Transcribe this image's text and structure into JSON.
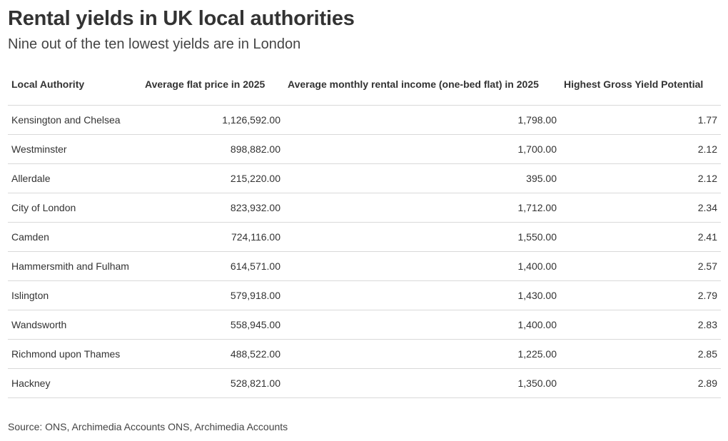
{
  "header": {
    "title": "Rental yields in UK local authorities",
    "subtitle": "Nine out of the ten lowest yields are in London"
  },
  "chart_data": {
    "type": "table",
    "title": "Rental yields in UK local authorities",
    "subtitle": "Nine out of the ten lowest yields are in London",
    "columns": [
      "Local Authority",
      "Average flat price in 2025",
      "Average monthly rental income (one-bed flat) in 2025",
      "Highest Gross Yield Potential"
    ],
    "rows": [
      [
        "Kensington and Chelsea",
        "1,126,592.00",
        "1,798.00",
        "1.77"
      ],
      [
        "Westminster",
        "898,882.00",
        "1,700.00",
        "2.12"
      ],
      [
        "Allerdale",
        "215,220.00",
        "395.00",
        "2.12"
      ],
      [
        "City of London",
        "823,932.00",
        "1,712.00",
        "2.34"
      ],
      [
        "Camden",
        "724,116.00",
        "1,550.00",
        "2.41"
      ],
      [
        "Hammersmith and Fulham",
        "614,571.00",
        "1,400.00",
        "2.57"
      ],
      [
        "Islington",
        "579,918.00",
        "1,430.00",
        "2.79"
      ],
      [
        "Wandsworth",
        "558,945.00",
        "1,400.00",
        "2.83"
      ],
      [
        "Richmond upon Thames",
        "488,522.00",
        "1,225.00",
        "2.85"
      ],
      [
        "Hackney",
        "528,821.00",
        "1,350.00",
        "2.89"
      ]
    ]
  },
  "footer": {
    "source": "Source: ONS, Archimedia Accounts ONS, Archimedia Accounts"
  }
}
